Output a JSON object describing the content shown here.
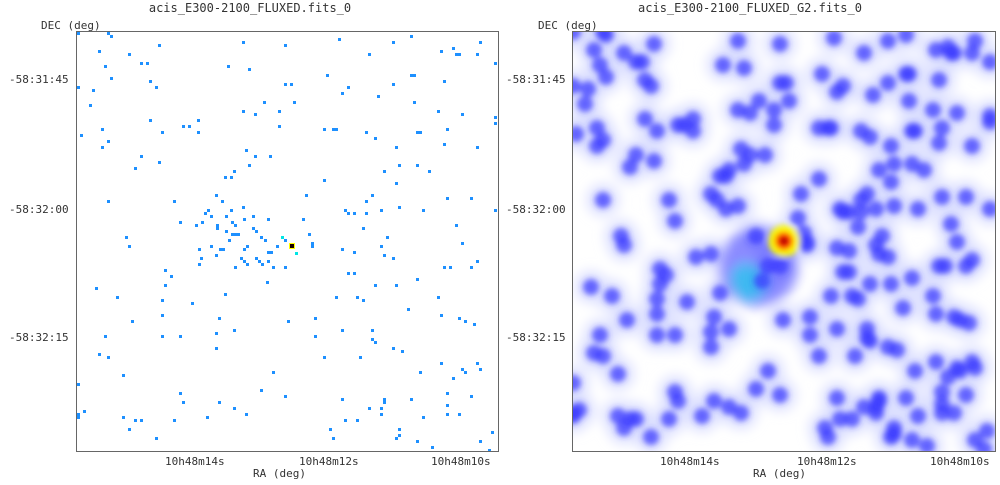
{
  "panels": [
    {
      "title": "acis_E300-2100_FLUXED.fits_0",
      "ylabel": "DEC (deg)",
      "xlabel": "RA (deg)",
      "yticks": [
        "-58:31:45",
        "-58:32:00",
        "-58:32:15"
      ],
      "xticks": [
        "10h48m14s",
        "10h48m12s",
        "10h48m10s"
      ]
    },
    {
      "title": "acis_E300-2100_FLUXED_G2.fits_0",
      "ylabel": "DEC (deg)",
      "xlabel": "RA (deg)",
      "yticks": [
        "-58:31:45",
        "-58:32:00",
        "-58:32:15"
      ],
      "xticks": [
        "10h48m14s",
        "10h48m12s",
        "10h48m10s"
      ]
    }
  ],
  "colors": {
    "sparse_pixel": "#1e90ff",
    "low_halo": "#d8dcff",
    "mid": "#3b3bff",
    "peak_core": "#1a0000",
    "peak_red": "#ff1a00",
    "peak_yellow": "#ffff00",
    "cyan": "#00e5e5"
  }
}
